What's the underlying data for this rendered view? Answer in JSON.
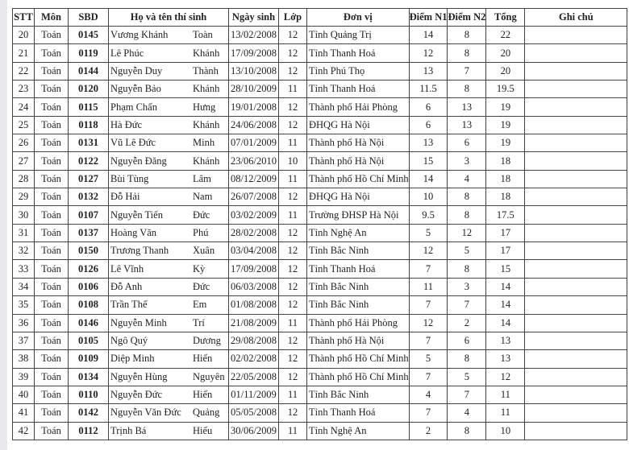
{
  "headers": [
    "STT",
    "Môn",
    "SBD",
    "Họ và tên thí sinh",
    "Ngày sinh",
    "Lớp",
    "Đơn vị",
    "Điểm N1",
    "Điểm N2",
    "Tổng",
    "Ghi chú"
  ],
  "rows": [
    [
      "20",
      "Toán",
      "0145",
      "Vương Khánh",
      "Toàn",
      "13/02/2008",
      "12",
      "Tỉnh Quảng Trị",
      "14",
      "8",
      "22",
      ""
    ],
    [
      "21",
      "Toán",
      "0119",
      "Lê Phúc",
      "Khánh",
      "17/09/2008",
      "12",
      "Tỉnh Thanh Hoá",
      "12",
      "8",
      "20",
      ""
    ],
    [
      "22",
      "Toán",
      "0144",
      "Nguyễn Duy",
      "Thành",
      "13/10/2008",
      "12",
      "Tỉnh Phú Thọ",
      "13",
      "7",
      "20",
      ""
    ],
    [
      "23",
      "Toán",
      "0120",
      "Nguyễn Bảo",
      "Khánh",
      "28/10/2009",
      "11",
      "Tỉnh Thanh Hoá",
      "11.5",
      "8",
      "19.5",
      ""
    ],
    [
      "24",
      "Toán",
      "0115",
      "Phạm Chấn",
      "Hưng",
      "19/01/2008",
      "12",
      "Thành phố Hải Phòng",
      "6",
      "13",
      "19",
      ""
    ],
    [
      "25",
      "Toán",
      "0118",
      "Hà Đức",
      "Khánh",
      "24/06/2008",
      "12",
      "ĐHQG Hà Nội",
      "6",
      "13",
      "19",
      ""
    ],
    [
      "26",
      "Toán",
      "0131",
      "Vũ Lê Đức",
      "Minh",
      "07/01/2009",
      "11",
      "Thành phố Hà Nội",
      "13",
      "6",
      "19",
      ""
    ],
    [
      "27",
      "Toán",
      "0122",
      "Nguyễn Đăng",
      "Khánh",
      "23/06/2010",
      "10",
      "Thành phố Hà Nội",
      "15",
      "3",
      "18",
      ""
    ],
    [
      "28",
      "Toán",
      "0127",
      "Bùi Tùng",
      "Lâm",
      "08/12/2009",
      "11",
      "Thành phố Hồ Chí Minh",
      "14",
      "4",
      "18",
      ""
    ],
    [
      "29",
      "Toán",
      "0132",
      "Đỗ Hải",
      "Nam",
      "26/07/2008",
      "12",
      "ĐHQG Hà Nội",
      "10",
      "8",
      "18",
      ""
    ],
    [
      "30",
      "Toán",
      "0107",
      "Nguyễn Tiến",
      "Đức",
      "03/02/2009",
      "11",
      "Trường ĐHSP Hà Nội",
      "9.5",
      "8",
      "17.5",
      ""
    ],
    [
      "31",
      "Toán",
      "0137",
      "Hoàng Văn",
      "Phú",
      "28/02/2008",
      "12",
      "Tỉnh Nghệ An",
      "5",
      "12",
      "17",
      ""
    ],
    [
      "32",
      "Toán",
      "0150",
      "Trương Thanh",
      "Xuân",
      "03/04/2008",
      "12",
      "Tỉnh Bắc Ninh",
      "12",
      "5",
      "17",
      ""
    ],
    [
      "33",
      "Toán",
      "0126",
      "Lê Vĩnh",
      "Kỳ",
      "17/09/2008",
      "12",
      "Tỉnh Thanh Hoá",
      "7",
      "8",
      "15",
      ""
    ],
    [
      "34",
      "Toán",
      "0106",
      "Đỗ Anh",
      "Đức",
      "06/03/2008",
      "12",
      "Tỉnh Bắc Ninh",
      "11",
      "3",
      "14",
      ""
    ],
    [
      "35",
      "Toán",
      "0108",
      "Trần Thế",
      "Em",
      "01/08/2008",
      "12",
      "Tỉnh Bắc Ninh",
      "7",
      "7",
      "14",
      ""
    ],
    [
      "36",
      "Toán",
      "0146",
      "Nguyễn Minh",
      "Trí",
      "21/08/2009",
      "11",
      "Thành phố Hải Phòng",
      "12",
      "2",
      "14",
      ""
    ],
    [
      "37",
      "Toán",
      "0105",
      "Ngô Quý",
      "Dương",
      "29/08/2008",
      "12",
      "Thành phố Hà Nội",
      "7",
      "6",
      "13",
      ""
    ],
    [
      "38",
      "Toán",
      "0109",
      "Diệp Minh",
      "Hiển",
      "02/02/2008",
      "12",
      "Thành phố Hồ Chí Minh",
      "5",
      "8",
      "13",
      ""
    ],
    [
      "39",
      "Toán",
      "0134",
      "Nguyễn Hùng",
      "Nguyên",
      "22/05/2008",
      "12",
      "Thành phố Hồ Chí Minh",
      "7",
      "5",
      "12",
      ""
    ],
    [
      "40",
      "Toán",
      "0110",
      "Nguyễn Đức",
      "Hiển",
      "01/11/2009",
      "11",
      "Tỉnh Bắc Ninh",
      "4",
      "7",
      "11",
      ""
    ],
    [
      "41",
      "Toán",
      "0142",
      "Nguyễn Văn Đức",
      "Quảng",
      "05/05/2008",
      "12",
      "Tỉnh Thanh Hoá",
      "7",
      "4",
      "11",
      ""
    ],
    [
      "42",
      "Toán",
      "0112",
      "Trịnh Bá",
      "Hiếu",
      "30/06/2009",
      "11",
      "Tỉnh Nghệ An",
      "2",
      "8",
      "10",
      ""
    ]
  ]
}
